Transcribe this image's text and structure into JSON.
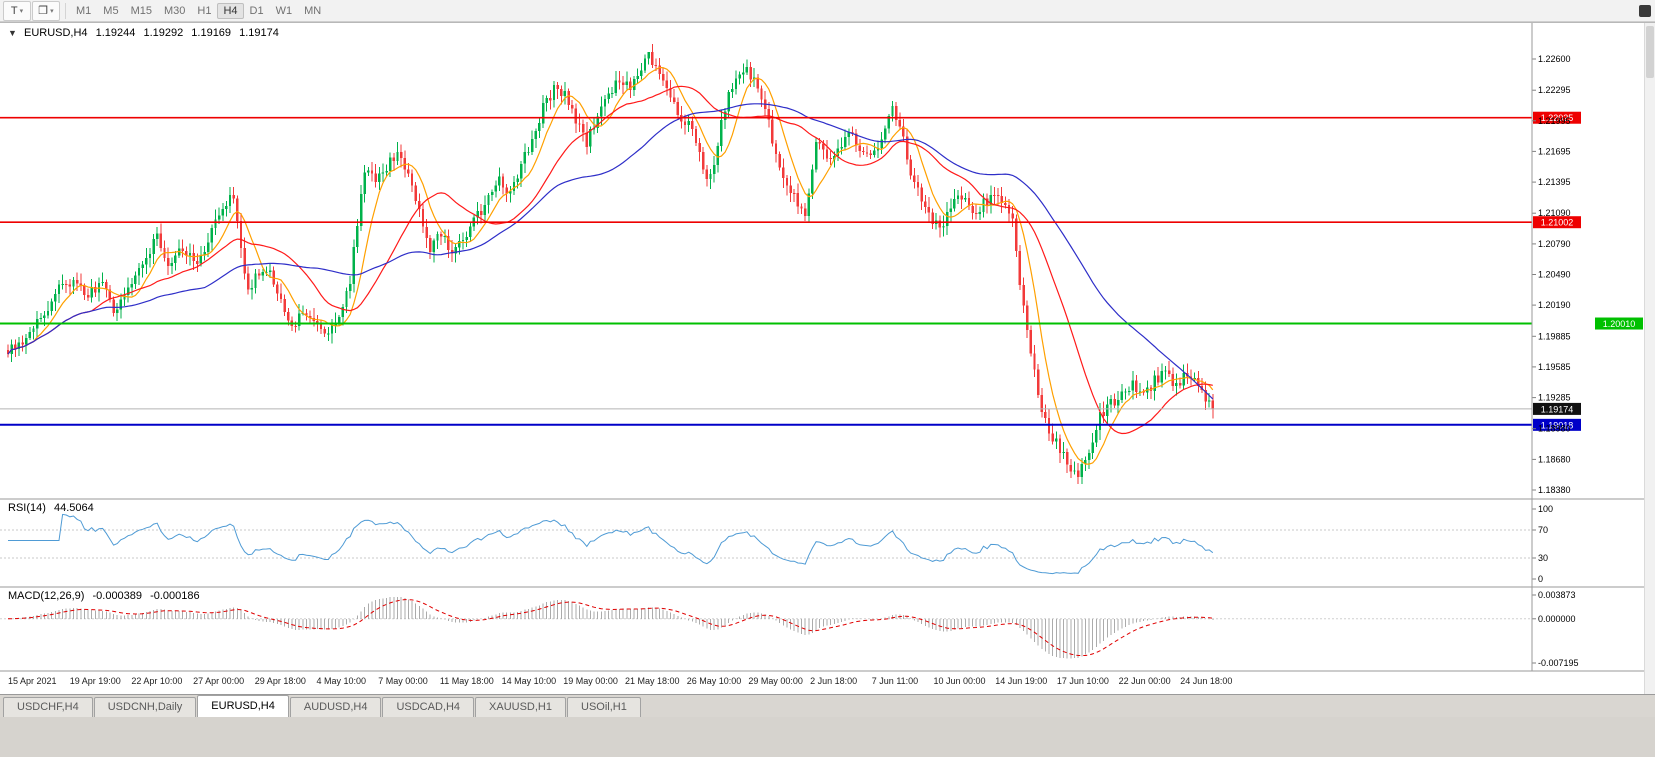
{
  "toolbar": {
    "buttons": [
      {
        "name": "text-tool",
        "glyph": "T"
      },
      {
        "name": "objects-tool",
        "glyph": "❐"
      }
    ],
    "caret": "▾",
    "timeframes": [
      "M1",
      "M5",
      "M15",
      "M30",
      "H1",
      "H4",
      "D1",
      "W1",
      "MN"
    ],
    "active_timeframe": "H4"
  },
  "header": {
    "collapse_glyph": "▼",
    "symbol": "EURUSD,H4",
    "open": "1.19244",
    "high": "1.19292",
    "low": "1.19169",
    "close": "1.19174"
  },
  "rsi_panel": {
    "name": "RSI(14)",
    "value": "44.5064",
    "scale": [
      "100",
      "70",
      "30",
      "0"
    ]
  },
  "macd_panel": {
    "name": "MACD(12,26,9)",
    "value_macd": "-0.000389",
    "value_signal": "-0.000186",
    "scale": [
      "0.003873",
      "0.000000",
      "-0.007195"
    ]
  },
  "tabs": {
    "active_index": 2,
    "items": [
      {
        "label": "USDCHF,H4"
      },
      {
        "label": "USDCNH,Daily"
      },
      {
        "label": "EURUSD,H4"
      },
      {
        "label": "AUDUSD,H4"
      },
      {
        "label": "USDCAD,H4"
      },
      {
        "label": "XAUUSD,H1"
      },
      {
        "label": "USOil,H1"
      }
    ]
  },
  "chart_data": {
    "type": "candlestick",
    "symbol": "EURUSD",
    "timeframe": "H4",
    "bars": 332,
    "ohlc": {
      "open": 1.19244,
      "high": 1.19292,
      "low": 1.19169,
      "close": 1.19174
    },
    "y_axis": {
      "labels": [
        "1.22600",
        "1.22295",
        "1.21995",
        "1.21695",
        "1.21395",
        "1.21090",
        "1.20790",
        "1.20490",
        "1.20190",
        "1.19885",
        "1.19585",
        "1.19285",
        "1.18980",
        "1.18680",
        "1.18380"
      ],
      "min": 1.18292,
      "max": 1.22933
    },
    "x_labels": [
      "15 Apr 2021",
      "19 Apr 19:00",
      "22 Apr 10:00",
      "27 Apr 00:00",
      "29 Apr 18:00",
      "4 May 10:00",
      "7 May 00:00",
      "11 May 18:00",
      "14 May 10:00",
      "19 May 00:00",
      "21 May 18:00",
      "26 May 10:00",
      "29 May 00:00",
      "2 Jun 18:00",
      "7 Jun 11:00",
      "10 Jun 00:00",
      "14 Jun 19:00",
      "17 Jun 10:00",
      "22 Jun 00:00",
      "24 Jun 18:00"
    ],
    "levels": [
      {
        "price": 1.22025,
        "label": "1.22025",
        "color": "#ee0000",
        "width": 1.6,
        "tag_far_right": false
      },
      {
        "price": 1.21002,
        "label": "1.21002",
        "color": "#ee0000",
        "width": 1.6,
        "tag_far_right": false
      },
      {
        "price": 1.2001,
        "label": "1.20010",
        "color": "#00c000",
        "width": 2.0,
        "tag_far_right": true
      },
      {
        "price": 1.19018,
        "label": "1.19018",
        "color": "#0000c8",
        "width": 2.0,
        "tag_far_right": false
      }
    ],
    "current_price": {
      "value": 1.19174,
      "label": "1.19174"
    },
    "colors": {
      "up": "#00b24b",
      "down": "#f23a3a",
      "ma_fast": "#ffa000",
      "ma_mid": "#ff1a1a",
      "ma_slow": "#2e2ec8",
      "rsi": "#4f9bd5",
      "macd_hist": "#ababab",
      "macd_signal": "#e00000"
    },
    "moving_averages": [
      {
        "period": 8,
        "key": "ma_fast"
      },
      {
        "period": 24,
        "key": "ma_mid"
      },
      {
        "period": 55,
        "key": "ma_slow"
      }
    ],
    "indicators": {
      "rsi": {
        "period": 14,
        "levels": [
          70,
          30
        ]
      },
      "macd": {
        "fast": 12,
        "slow": 26,
        "signal": 9,
        "scale_max": 0.003873,
        "scale_min": -0.007195
      }
    },
    "extremes": {
      "high_bar": 176,
      "high": 1.2266,
      "low_bar": 294,
      "low": 1.1844
    },
    "price_path": [
      [
        0,
        1.1973
      ],
      [
        6,
        1.1992
      ],
      [
        10,
        1.201
      ],
      [
        14,
        1.2036
      ],
      [
        18,
        1.2042
      ],
      [
        22,
        1.2028
      ],
      [
        26,
        1.2045
      ],
      [
        29,
        1.2008
      ],
      [
        33,
        1.2035
      ],
      [
        37,
        1.206
      ],
      [
        41,
        1.2088
      ],
      [
        44,
        1.2062
      ],
      [
        48,
        1.2075
      ],
      [
        52,
        1.206
      ],
      [
        56,
        1.209
      ],
      [
        59,
        1.2118
      ],
      [
        62,
        1.2125
      ],
      [
        64,
        1.208
      ],
      [
        66,
        1.203
      ],
      [
        69,
        1.2052
      ],
      [
        72,
        1.2055
      ],
      [
        75,
        1.2022
      ],
      [
        78,
        1.1995
      ],
      [
        81,
        1.2015
      ],
      [
        84,
        1.2008
      ],
      [
        88,
        1.199
      ],
      [
        91,
        1.2002
      ],
      [
        94,
        1.2045
      ],
      [
        98,
        1.2148
      ],
      [
        101,
        1.214
      ],
      [
        104,
        1.2155
      ],
      [
        107,
        1.2165
      ],
      [
        110,
        1.215
      ],
      [
        113,
        1.2108
      ],
      [
        116,
        1.2075
      ],
      [
        119,
        1.2088
      ],
      [
        122,
        1.207
      ],
      [
        125,
        1.2082
      ],
      [
        128,
        1.21
      ],
      [
        131,
        1.2118
      ],
      [
        135,
        1.214
      ],
      [
        138,
        1.2128
      ],
      [
        141,
        1.2155
      ],
      [
        144,
        1.218
      ],
      [
        147,
        1.2212
      ],
      [
        150,
        1.223
      ],
      [
        153,
        1.2228
      ],
      [
        156,
        1.2198
      ],
      [
        159,
        1.2178
      ],
      [
        162,
        1.2205
      ],
      [
        165,
        1.2228
      ],
      [
        168,
        1.224
      ],
      [
        171,
        1.2232
      ],
      [
        174,
        1.225
      ],
      [
        176,
        1.2262
      ],
      [
        179,
        1.2248
      ],
      [
        182,
        1.2222
      ],
      [
        185,
        1.22
      ],
      [
        188,
        1.2192
      ],
      [
        191,
        1.215
      ],
      [
        193,
        1.2142
      ],
      [
        196,
        1.2198
      ],
      [
        199,
        1.2235
      ],
      [
        202,
        1.2252
      ],
      [
        205,
        1.224
      ],
      [
        208,
        1.2212
      ],
      [
        211,
        1.2165
      ],
      [
        214,
        1.2135
      ],
      [
        217,
        1.2118
      ],
      [
        219,
        1.2106
      ],
      [
        222,
        1.2178
      ],
      [
        225,
        1.2162
      ],
      [
        228,
        1.2172
      ],
      [
        231,
        1.2188
      ],
      [
        234,
        1.217
      ],
      [
        237,
        1.2165
      ],
      [
        240,
        1.218
      ],
      [
        243,
        1.221
      ],
      [
        245,
        1.2195
      ],
      [
        248,
        1.215
      ],
      [
        251,
        1.2118
      ],
      [
        254,
        1.21
      ],
      [
        256,
        1.2094
      ],
      [
        259,
        1.2115
      ],
      [
        262,
        1.2128
      ],
      [
        265,
        1.211
      ],
      [
        268,
        1.2118
      ],
      [
        271,
        1.2125
      ],
      [
        274,
        1.2112
      ],
      [
        276,
        1.2108
      ],
      [
        278,
        1.204
      ],
      [
        280,
        1.199
      ],
      [
        283,
        1.1932
      ],
      [
        286,
        1.1895
      ],
      [
        289,
        1.1878
      ],
      [
        292,
        1.1858
      ],
      [
        294,
        1.1851
      ],
      [
        296,
        1.1868
      ],
      [
        298,
        1.1888
      ],
      [
        300,
        1.1912
      ],
      [
        303,
        1.1922
      ],
      [
        306,
        1.1932
      ],
      [
        309,
        1.194
      ],
      [
        312,
        1.1928
      ],
      [
        315,
        1.1945
      ],
      [
        318,
        1.1952
      ],
      [
        321,
        1.1938
      ],
      [
        324,
        1.1952
      ],
      [
        327,
        1.1944
      ],
      [
        329,
        1.1928
      ],
      [
        331,
        1.19174
      ]
    ]
  }
}
